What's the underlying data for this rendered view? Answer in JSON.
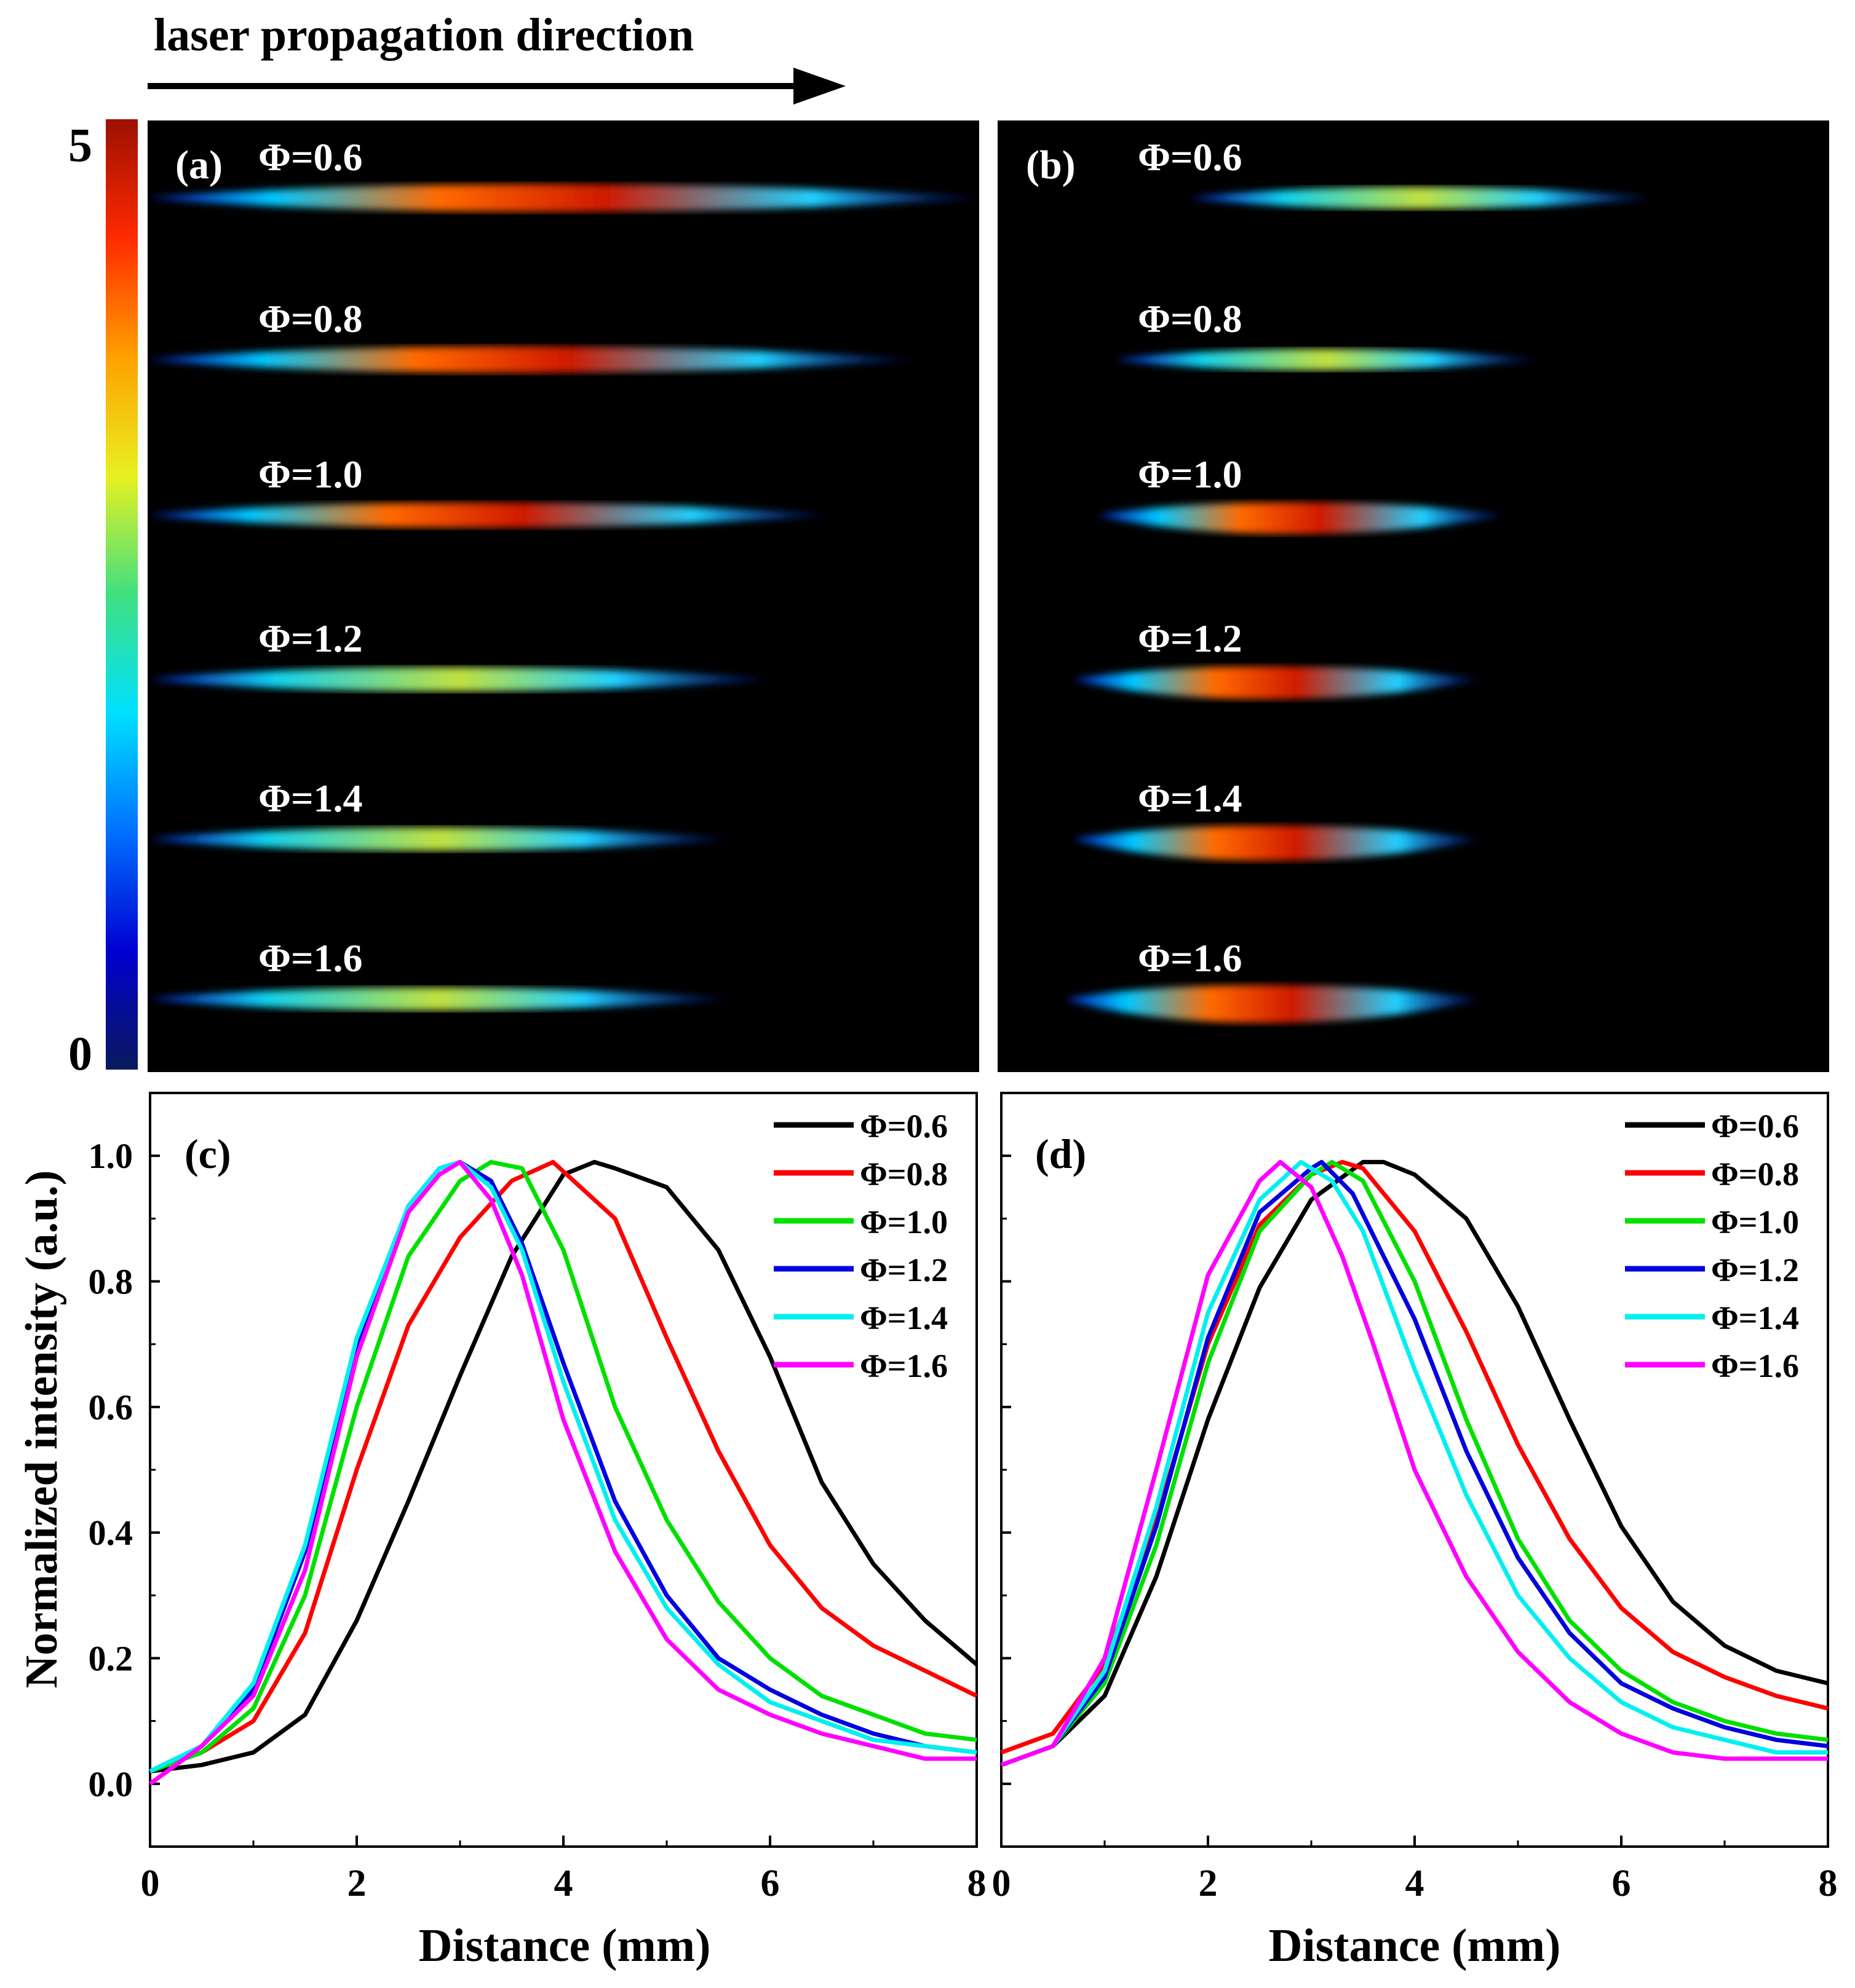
{
  "header": {
    "title": "laser propagation direction"
  },
  "colorbar": {
    "max_label": "5",
    "min_label": "0",
    "stops": [
      "#0a1a5c",
      "#0000d0",
      "#0070ff",
      "#00e0ff",
      "#40e080",
      "#e8f020",
      "#ffa000",
      "#ff2a00",
      "#9c1000"
    ]
  },
  "images": [
    {
      "panel": "(a)",
      "rows": [
        {
          "label": "Φ=0.6",
          "start": 0.0,
          "end": 1.0,
          "peak": 1.0,
          "curve": 0
        },
        {
          "label": "Φ=0.8",
          "start": 0.0,
          "end": 0.92,
          "peak": 0.9,
          "curve": 0
        },
        {
          "label": "Φ=1.0",
          "start": 0.0,
          "end": 0.82,
          "peak": 0.8,
          "curve": 0
        },
        {
          "label": "Φ=1.2",
          "start": 0.0,
          "end": 0.75,
          "peak": 0.72,
          "curve": 0
        },
        {
          "label": "Φ=1.4",
          "start": 0.0,
          "end": 0.7,
          "peak": 0.65,
          "curve": 0
        },
        {
          "label": "Φ=1.6",
          "start": 0.0,
          "end": 0.7,
          "peak": 0.62,
          "curve": 0
        }
      ]
    },
    {
      "panel": "(b)",
      "rows": [
        {
          "label": "Φ=0.6",
          "start": 0.23,
          "end": 0.79,
          "peak": 0.55,
          "curve": 0
        },
        {
          "label": "Φ=0.8",
          "start": 0.14,
          "end": 0.65,
          "peak": 0.5,
          "curve": 0
        },
        {
          "label": "Φ=1.0",
          "start": 0.12,
          "end": 0.61,
          "peak": 0.85,
          "curve": 0.6
        },
        {
          "label": "Φ=1.2",
          "start": 0.09,
          "end": 0.58,
          "peak": 0.85,
          "curve": 0.7
        },
        {
          "label": "Φ=1.4",
          "start": 0.09,
          "end": 0.58,
          "peak": 0.95,
          "curve": 0.8
        },
        {
          "label": "Φ=1.6",
          "start": 0.08,
          "end": 0.58,
          "peak": 1.0,
          "curve": 1.0
        }
      ]
    }
  ],
  "chart_data": [
    {
      "panel": "(c)",
      "type": "line",
      "xlabel": "Distance (mm)",
      "ylabel": "Normalized intensity (a.u.)",
      "xlim": [
        0,
        8
      ],
      "ylim": [
        -0.1,
        1.1
      ],
      "xticks": [
        0,
        2,
        4,
        6,
        8
      ],
      "yticks": [
        0.0,
        0.2,
        0.4,
        0.6,
        0.8,
        1.0
      ],
      "xtick_labels": [
        "0",
        "2",
        "4",
        "6",
        "8"
      ],
      "ytick_labels": [
        "0.0",
        "0.2",
        "0.4",
        "0.6",
        "0.8",
        "1.0"
      ],
      "legend_position": "top-right",
      "series": [
        {
          "name": "Φ=0.6",
          "color": "#000000",
          "x": [
            0,
            0.5,
            1.0,
            1.5,
            2.0,
            2.5,
            3.0,
            3.5,
            4.0,
            4.3,
            4.5,
            5.0,
            5.5,
            6.0,
            6.5,
            7.0,
            7.5,
            8.0
          ],
          "y": [
            0.02,
            0.03,
            0.05,
            0.11,
            0.26,
            0.45,
            0.65,
            0.84,
            0.97,
            0.99,
            0.98,
            0.95,
            0.85,
            0.68,
            0.48,
            0.35,
            0.26,
            0.19
          ]
        },
        {
          "name": "Φ=0.8",
          "color": "#ff0000",
          "x": [
            0,
            0.5,
            1.0,
            1.5,
            2.0,
            2.5,
            3.0,
            3.5,
            3.9,
            4.5,
            5.0,
            5.5,
            6.0,
            6.5,
            7.0,
            7.5,
            8.0
          ],
          "y": [
            0.02,
            0.05,
            0.1,
            0.24,
            0.5,
            0.73,
            0.87,
            0.96,
            0.99,
            0.9,
            0.71,
            0.53,
            0.38,
            0.28,
            0.22,
            0.18,
            0.14
          ]
        },
        {
          "name": "Φ=1.0",
          "color": "#00e000",
          "x": [
            0,
            0.5,
            1.0,
            1.5,
            2.0,
            2.5,
            3.0,
            3.3,
            3.6,
            4.0,
            4.5,
            5.0,
            5.5,
            6.0,
            6.5,
            7.0,
            7.5,
            8.0
          ],
          "y": [
            0.02,
            0.05,
            0.12,
            0.3,
            0.6,
            0.84,
            0.96,
            0.99,
            0.98,
            0.85,
            0.6,
            0.42,
            0.29,
            0.2,
            0.14,
            0.11,
            0.08,
            0.07
          ]
        },
        {
          "name": "Φ=1.2",
          "color": "#0000e0",
          "x": [
            0,
            0.5,
            1.0,
            1.5,
            2.0,
            2.5,
            2.8,
            3.0,
            3.3,
            3.6,
            4.0,
            4.5,
            5.0,
            5.5,
            6.0,
            6.5,
            7.0,
            7.5,
            8.0
          ],
          "y": [
            0.02,
            0.06,
            0.15,
            0.37,
            0.7,
            0.92,
            0.98,
            0.99,
            0.96,
            0.86,
            0.67,
            0.45,
            0.3,
            0.2,
            0.15,
            0.11,
            0.08,
            0.06,
            0.05
          ]
        },
        {
          "name": "Φ=1.4",
          "color": "#00f0f0",
          "x": [
            0,
            0.5,
            1.0,
            1.5,
            2.0,
            2.5,
            2.8,
            3.0,
            3.3,
            3.6,
            4.0,
            4.5,
            5.0,
            5.5,
            6.0,
            6.5,
            7.0,
            7.5,
            8.0
          ],
          "y": [
            0.02,
            0.06,
            0.16,
            0.38,
            0.71,
            0.92,
            0.98,
            0.99,
            0.95,
            0.85,
            0.64,
            0.42,
            0.28,
            0.19,
            0.13,
            0.1,
            0.07,
            0.06,
            0.05
          ]
        },
        {
          "name": "Φ=1.6",
          "color": "#ff00ff",
          "x": [
            0,
            0.5,
            1.0,
            1.5,
            2.0,
            2.5,
            2.8,
            3.0,
            3.3,
            3.6,
            4.0,
            4.5,
            5.0,
            5.5,
            6.0,
            6.5,
            7.0,
            7.5,
            8.0
          ],
          "y": [
            0.0,
            0.06,
            0.14,
            0.34,
            0.68,
            0.91,
            0.97,
            0.99,
            0.93,
            0.81,
            0.58,
            0.37,
            0.23,
            0.15,
            0.11,
            0.08,
            0.06,
            0.04,
            0.04
          ]
        }
      ]
    },
    {
      "panel": "(d)",
      "type": "line",
      "xlabel": "Distance (mm)",
      "ylabel": "",
      "xlim": [
        0,
        8
      ],
      "ylim": [
        -0.1,
        1.1
      ],
      "xticks": [
        0,
        2,
        4,
        6,
        8
      ],
      "yticks": [
        0.0,
        0.2,
        0.4,
        0.6,
        0.8,
        1.0
      ],
      "xtick_labels": [
        "0",
        "2",
        "4",
        "6",
        "8"
      ],
      "legend_position": "top-right",
      "series": [
        {
          "name": "Φ=0.6",
          "color": "#000000",
          "x": [
            0,
            0.5,
            1.0,
            1.5,
            2.0,
            2.5,
            3.0,
            3.5,
            3.7,
            4.0,
            4.5,
            5.0,
            5.5,
            6.0,
            6.5,
            7.0,
            7.5,
            8.0
          ],
          "y": [
            0.03,
            0.06,
            0.14,
            0.33,
            0.58,
            0.79,
            0.93,
            0.99,
            0.99,
            0.97,
            0.9,
            0.76,
            0.58,
            0.41,
            0.29,
            0.22,
            0.18,
            0.16
          ]
        },
        {
          "name": "Φ=0.8",
          "color": "#ff0000",
          "x": [
            0,
            0.5,
            1.0,
            1.5,
            2.0,
            2.5,
            3.0,
            3.3,
            3.5,
            4.0,
            4.5,
            5.0,
            5.5,
            6.0,
            6.5,
            7.0,
            7.5,
            8.0
          ],
          "y": [
            0.05,
            0.08,
            0.19,
            0.42,
            0.7,
            0.89,
            0.97,
            0.99,
            0.98,
            0.88,
            0.72,
            0.54,
            0.39,
            0.28,
            0.21,
            0.17,
            0.14,
            0.12
          ]
        },
        {
          "name": "Φ=1.0",
          "color": "#00e000",
          "x": [
            0,
            0.5,
            1.0,
            1.5,
            2.0,
            2.5,
            3.0,
            3.2,
            3.5,
            4.0,
            4.5,
            5.0,
            5.5,
            6.0,
            6.5,
            7.0,
            7.5,
            8.0
          ],
          "y": [
            0.03,
            0.06,
            0.16,
            0.38,
            0.67,
            0.88,
            0.97,
            0.99,
            0.96,
            0.8,
            0.58,
            0.39,
            0.26,
            0.18,
            0.13,
            0.1,
            0.08,
            0.07
          ]
        },
        {
          "name": "Φ=1.2",
          "color": "#0000e0",
          "x": [
            0,
            0.5,
            1.0,
            1.5,
            2.0,
            2.5,
            3.0,
            3.1,
            3.4,
            4.0,
            4.5,
            5.0,
            5.5,
            6.0,
            6.5,
            7.0,
            7.5,
            8.0
          ],
          "y": [
            0.03,
            0.06,
            0.17,
            0.41,
            0.71,
            0.91,
            0.98,
            0.99,
            0.94,
            0.74,
            0.53,
            0.36,
            0.24,
            0.16,
            0.12,
            0.09,
            0.07,
            0.06
          ]
        },
        {
          "name": "Φ=1.4",
          "color": "#00f0f0",
          "x": [
            0,
            0.5,
            1.0,
            1.5,
            2.0,
            2.5,
            2.9,
            3.2,
            3.5,
            4.0,
            4.5,
            5.0,
            5.5,
            6.0,
            6.5,
            7.0,
            7.5,
            8.0
          ],
          "y": [
            0.03,
            0.06,
            0.18,
            0.44,
            0.75,
            0.93,
            0.99,
            0.96,
            0.88,
            0.66,
            0.46,
            0.3,
            0.2,
            0.13,
            0.09,
            0.07,
            0.05,
            0.05
          ]
        },
        {
          "name": "Φ=1.6",
          "color": "#ff00ff",
          "x": [
            0,
            0.5,
            1.0,
            1.5,
            2.0,
            2.5,
            2.7,
            3.0,
            3.3,
            3.6,
            4.0,
            4.5,
            5.0,
            5.5,
            6.0,
            6.5,
            7.0,
            7.5,
            8.0
          ],
          "y": [
            0.03,
            0.06,
            0.2,
            0.5,
            0.81,
            0.96,
            0.99,
            0.95,
            0.84,
            0.7,
            0.5,
            0.33,
            0.21,
            0.13,
            0.08,
            0.05,
            0.04,
            0.04,
            0.04
          ]
        }
      ]
    }
  ]
}
